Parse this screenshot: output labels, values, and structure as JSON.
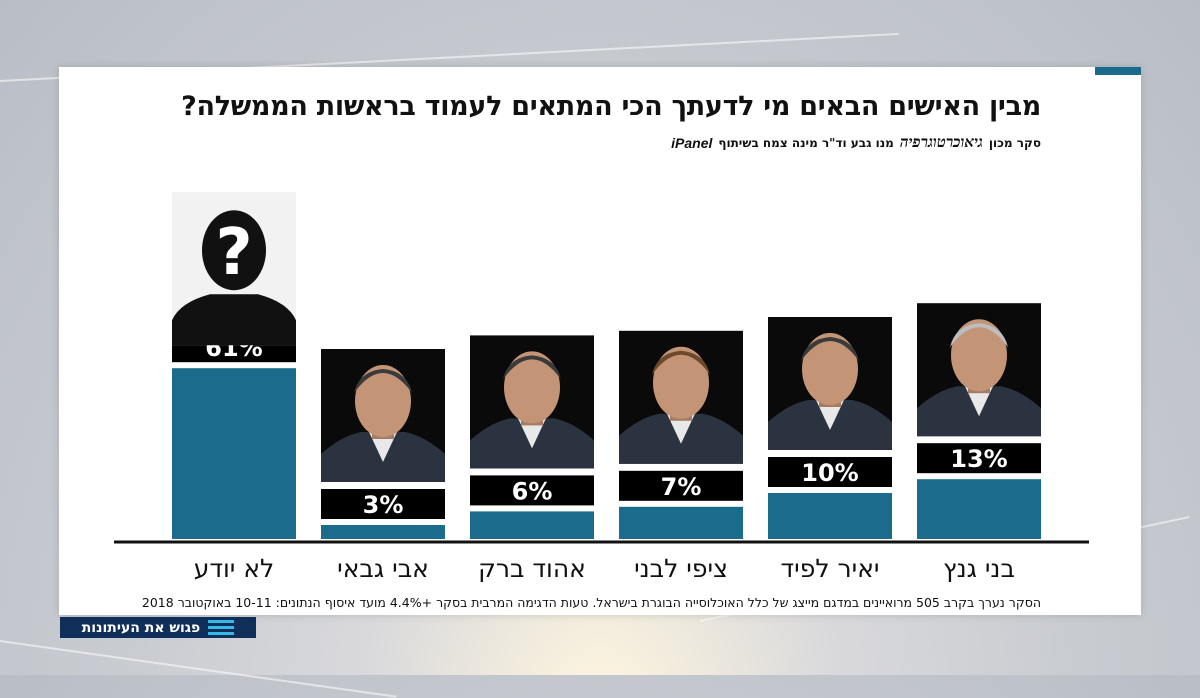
{
  "title": "מבין האישים הבאים מי לדעתך הכי המתאים לעמוד בראשות הממשלה?",
  "credit": {
    "prefix": "סקר מכון",
    "logo_text": "גיאוכרטוגרפיה",
    "middle": "מנו גבע וד\"ר מינה צמח בשיתוף",
    "panel_logo": "iPanel"
  },
  "footnote": "הסקר נערך בקרב  505 מרואיינים במדגם מייצג של כלל האוכלוסייה הבוגרת בישראל. טעות הדגימה המרבית בסקר  +4.4% מועד איסוף הנתונים: 10-11 באוקטובר 2018",
  "brand": {
    "label": "פגוש את העיתונות",
    "icon": "menu-lines-icon"
  },
  "colors": {
    "bar": "#1a6b8c",
    "label_box": "#000000",
    "accent": "#1a6b8c",
    "brand_bg": "#0f2e59",
    "brand_icon": "#35b8e6"
  },
  "chart_data": {
    "type": "bar",
    "categories": [
      "לא יודע",
      "אבי גבאי",
      "אהוד ברק",
      "ציפי לבני",
      "יאיר לפיד",
      "בני גנץ"
    ],
    "values": [
      61,
      3,
      6,
      7,
      10,
      13
    ],
    "value_labels": [
      "61%",
      "3%",
      "6%",
      "7%",
      "10%",
      "13%"
    ],
    "photos": [
      "unknown-silhouette-icon",
      "avi-gabbay-portrait",
      "ehud-barak-portrait",
      "tzipi-livni-portrait",
      "yair-lapid-portrait",
      "benny-gantz-portrait"
    ],
    "ylim": [
      0,
      100
    ],
    "grid": false,
    "legend": "none",
    "title": "",
    "xlabel": "",
    "ylabel": ""
  }
}
